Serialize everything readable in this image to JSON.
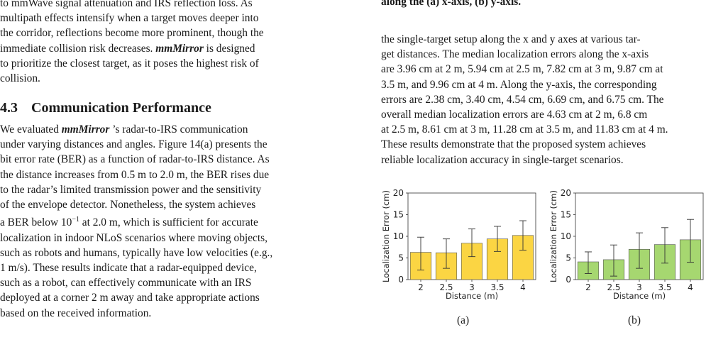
{
  "left_column": {
    "para1_lines": [
      "to mmWave signal attenuation and IRS reflection loss. As",
      "multipath effects intensify when a target moves deeper into",
      "the corridor, reflections become more prominent, though the",
      "immediate collision risk decreases. |mmMirror| is designed",
      "to prioritize the closest target, as it poses the highest risk of",
      "collision."
    ],
    "section_number": "4.3",
    "section_title": "Communication Performance",
    "para2_lines": [
      "We evaluated |mmMirror| ’s radar-to-IRS communication",
      "under varying distances and angles. Figure 14(a) presents the",
      "bit error rate (BER) as a function of radar-to-IRS distance. As",
      "the distance increases from 0.5 m to 2.0 m, the BER rises due",
      "to the radar’s limited transmission power and the sensitivity",
      "of the envelope detector. Nonetheless, the system achieves",
      "a BER below 10^{−1} at 2.0 m, which is sufficient for accurate",
      "localization in indoor NLoS scenarios where moving objects,",
      "such as robots and humans, typically have low velocities (e.g.,",
      "1 m/s). These results indicate that a radar-equipped device,",
      "such as a robot, can effectively communicate with an IRS",
      "deployed at a corner 2 m away and take appropriate actions",
      "based on the received information."
    ]
  },
  "right_column": {
    "caption_tail": "along the (a) x-axis, (b) y-axis.",
    "para_lines": [
      "the single-target setup along the x and y axes at various tar-",
      "get distances. The median localization errors along the x-axis",
      "are 3.96 cm at 2 m, 5.94 cm at 2.5 m, 7.82 cm at 3 m, 9.87 cm at",
      "3.5 m, and 9.96 cm at 4 m. Along the y-axis, the corresponding",
      "errors are 2.38 cm, 3.40 cm, 4.54 cm, 6.69 cm, and 6.75 cm. The",
      "overall median localization errors are 4.63 cm at 2 m, 6.8 cm",
      "at 2.5 m, 8.61 cm at 3 m, 11.28 cm at 3.5 m, and 11.83 cm at 4 m.",
      "These results demonstrate that the proposed system achieves",
      "reliable localization accuracy in single-target scenarios."
    ]
  },
  "chart_data": [
    {
      "type": "bar",
      "subcaption": "(a)",
      "categories": [
        "2",
        "2.5",
        "3",
        "3.5",
        "4"
      ],
      "values": [
        6.3,
        6.2,
        8.4,
        9.4,
        10.2
      ],
      "error_low": [
        2.2,
        2.6,
        5.3,
        6.5,
        6.8
      ],
      "error_high": [
        9.8,
        9.4,
        11.7,
        12.3,
        13.6
      ],
      "xlabel": "Distance (m)",
      "ylabel": "Localization Error (cm)",
      "ylim": [
        0,
        20
      ],
      "yticks": [
        0,
        5,
        10,
        15,
        20
      ],
      "bar_color": "#fbd543",
      "grid": false
    },
    {
      "type": "bar",
      "subcaption": "(b)",
      "categories": [
        "2",
        "2.5",
        "3",
        "3.5",
        "4"
      ],
      "values": [
        4.1,
        4.6,
        7.0,
        8.1,
        9.2
      ],
      "error_low": [
        1.4,
        0.8,
        2.6,
        3.8,
        4.0
      ],
      "error_high": [
        6.4,
        8.0,
        10.8,
        12.0,
        13.9
      ],
      "xlabel": "Distance (m)",
      "ylabel": "Localization Error (cm)",
      "ylim": [
        0,
        20
      ],
      "yticks": [
        0,
        5,
        10,
        15,
        20
      ],
      "bar_color": "#a6d770",
      "grid": false
    }
  ]
}
